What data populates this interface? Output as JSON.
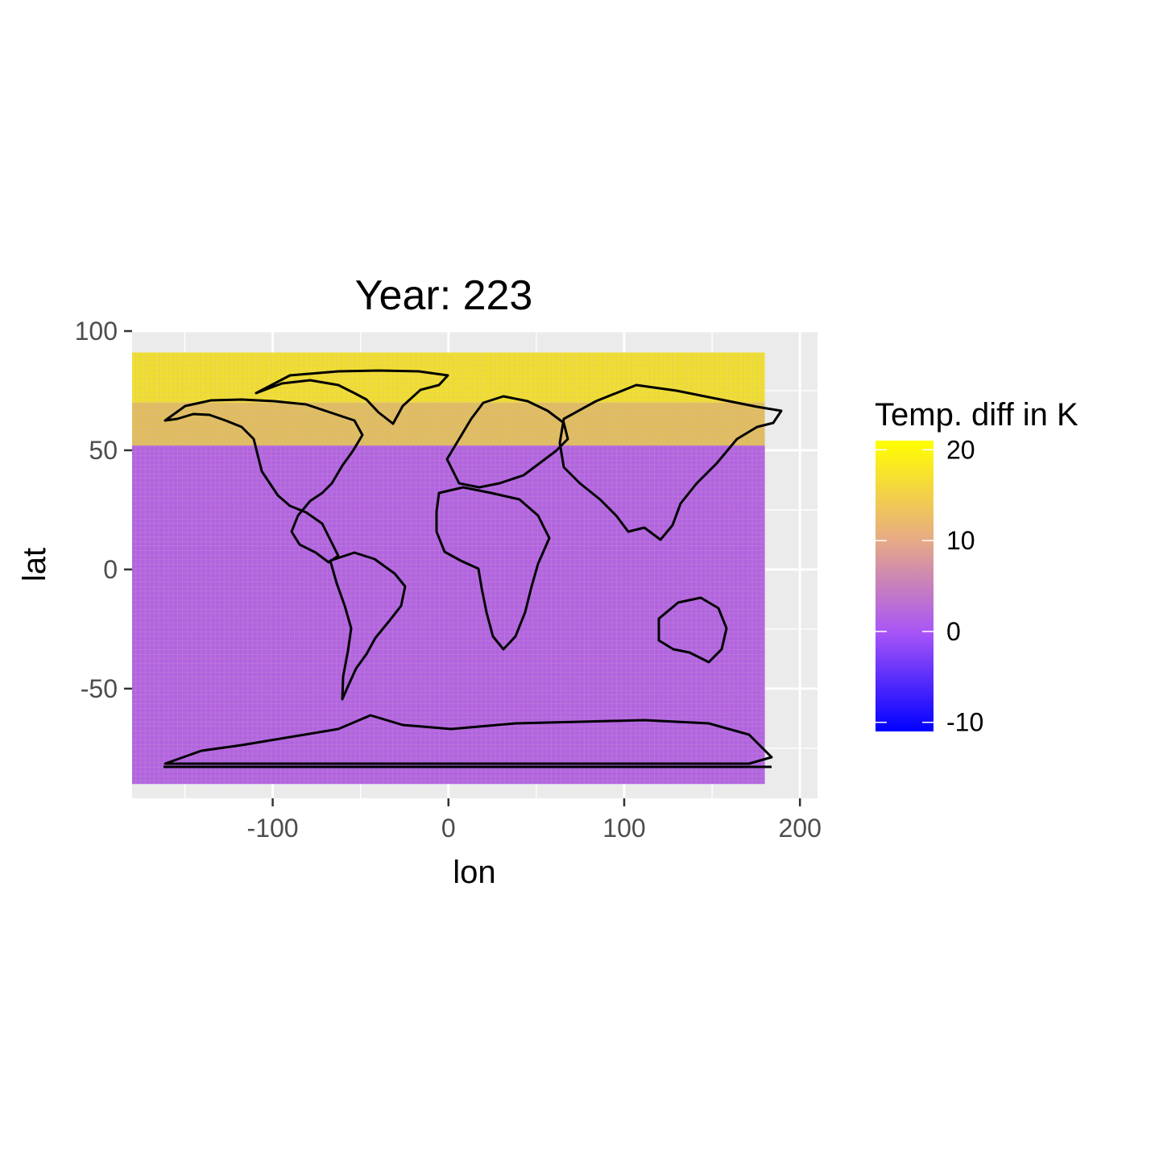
{
  "chart_data": {
    "type": "heatmap",
    "title": "Year: 223",
    "xlabel": "lon",
    "ylabel": "lat",
    "xlim": [
      -180,
      210
    ],
    "ylim": [
      -96,
      100
    ],
    "grid": true,
    "x_ticks": [
      -100,
      0,
      100,
      200
    ],
    "y_ticks": [
      -50,
      0,
      50,
      100
    ],
    "data_extent": {
      "lon": [
        -180,
        180
      ],
      "lat": [
        -90,
        91
      ]
    },
    "cell_size_deg": 2.5,
    "fill_bands": [
      {
        "lat_min": 70,
        "lat_max": 91,
        "value": 17
      },
      {
        "lat_min": 52,
        "lat_max": 70,
        "value": 13
      },
      {
        "lat_min": -90,
        "lat_max": 52,
        "value": 2
      }
    ],
    "overlay": "world-country-borders",
    "legend": {
      "title": "Temp. diff in K",
      "placement": "right",
      "range": [
        -11,
        21
      ],
      "ticks": [
        20,
        10,
        0,
        -10
      ],
      "colors": {
        "low": "#0000ff",
        "mid": "#a855f7",
        "mid_value": 0,
        "high": "#ffff00"
      }
    }
  }
}
